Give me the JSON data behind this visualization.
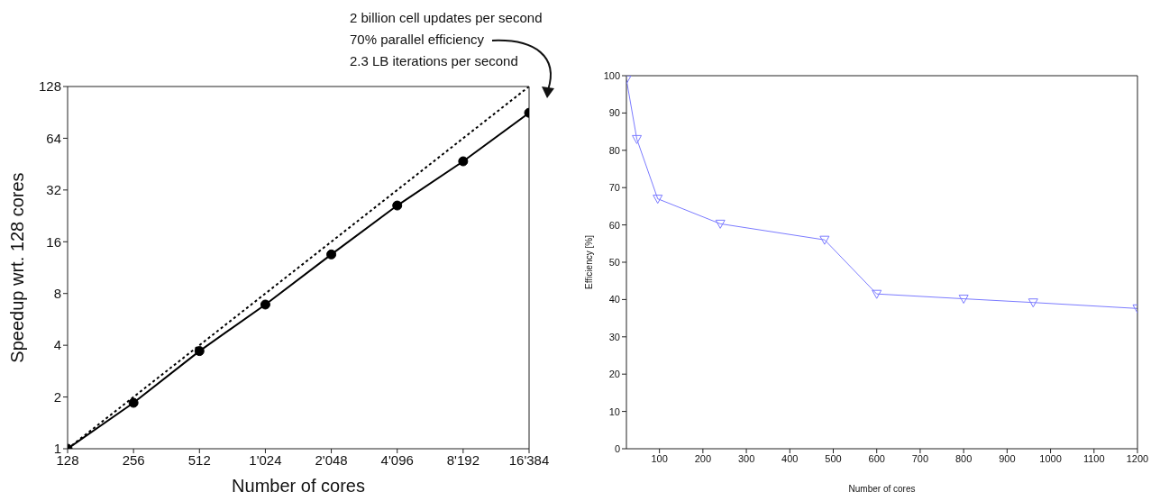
{
  "chart_data": [
    {
      "type": "line",
      "xlabel": "Number of cores",
      "ylabel": "Speedup wrt. 128 cores",
      "annotations": [
        "2 billion cell updates per second",
        "70% parallel efficiency",
        "2.3 LB iterations per second"
      ],
      "x": [
        128,
        256,
        512,
        1024,
        2048,
        4096,
        8192,
        16384
      ],
      "series": [
        {
          "color": "#000000",
          "marker": "circle",
          "line_style": "solid",
          "values": [
            1,
            1.85,
            3.7,
            6.9,
            13.5,
            26,
            47,
            90
          ]
        },
        {
          "color": "#000000",
          "marker": "none",
          "line_style": "dotted",
          "values": [
            1,
            2,
            4,
            8,
            16,
            32,
            64,
            128
          ]
        }
      ],
      "log": "xy",
      "xlim": [
        128,
        16384
      ],
      "ylim": [
        1,
        128
      ],
      "xticks": [
        128,
        256,
        512,
        {
          "value": 1024,
          "label": "1'024"
        },
        {
          "value": 2048,
          "label": "2'048"
        },
        {
          "value": 4096,
          "label": "4'096"
        },
        {
          "value": 8192,
          "label": "8'192"
        },
        {
          "value": 16384,
          "label": "16'384"
        }
      ],
      "yticks": [
        1,
        2,
        4,
        8,
        16,
        32,
        64,
        128
      ],
      "grid": false,
      "legend": false
    },
    {
      "type": "line",
      "xlabel": "Number of cores",
      "ylabel": "Efficiency [%]",
      "x": [
        24,
        48,
        96,
        240,
        480,
        600,
        800,
        960,
        1200
      ],
      "series": [
        {
          "color": "#7b7bff",
          "values": [
            99,
            83,
            67,
            60.3,
            56,
            41.5,
            40.2,
            39.2,
            37.6
          ]
        }
      ],
      "marker": "triangle",
      "line_style": "solid",
      "xlim": [
        24,
        1200
      ],
      "ylim": [
        0,
        100
      ],
      "xticks": [
        100,
        200,
        300,
        400,
        500,
        600,
        700,
        800,
        900,
        1000,
        1100,
        1200
      ],
      "yticks": [
        0,
        10,
        20,
        30,
        40,
        50,
        60,
        70,
        80,
        90,
        100
      ],
      "grid": false,
      "legend": false
    }
  ]
}
